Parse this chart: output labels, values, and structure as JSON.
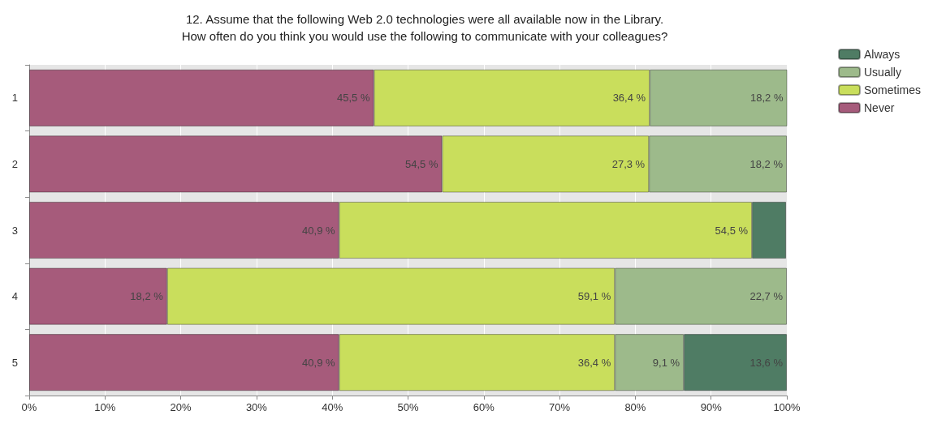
{
  "chart_data": {
    "type": "bar",
    "orientation": "horizontal",
    "stacked": true,
    "title": "12. Assume that the following Web 2.0 technologies were all available now in the Library.\nHow often do you think you would use the following to communicate with your colleagues?",
    "categories": [
      "1",
      "2",
      "3",
      "4",
      "5"
    ],
    "series": [
      {
        "name": "Never",
        "color": "#a65b7b",
        "values": [
          45.5,
          54.5,
          40.9,
          18.2,
          40.9
        ],
        "value_labels": [
          "45,5 %",
          "54,5 %",
          "40,9 %",
          "18,2 %",
          "40,9 %"
        ]
      },
      {
        "name": "Sometimes",
        "color": "#c9de5c",
        "values": [
          36.4,
          27.3,
          54.5,
          59.1,
          36.4
        ],
        "value_labels": [
          "36,4 %",
          "27,3 %",
          "54,5 %",
          "59,1 %",
          "36,4 %"
        ]
      },
      {
        "name": "Usually",
        "color": "#9dba8b",
        "values": [
          18.2,
          18.2,
          null,
          22.7,
          9.1
        ],
        "value_labels": [
          "18,2 %",
          "18,2 %",
          null,
          "22,7 %",
          "9,1 %"
        ]
      },
      {
        "name": "Always",
        "color": "#4f7c64",
        "values": [
          null,
          null,
          4.5,
          null,
          13.6
        ],
        "value_labels": [
          null,
          null,
          null,
          null,
          "13,6 %"
        ]
      }
    ],
    "xlim": [
      0,
      100
    ],
    "xticks": [
      {
        "value": 0,
        "label": "0%"
      },
      {
        "value": 10,
        "label": "10%"
      },
      {
        "value": 20,
        "label": "20%"
      },
      {
        "value": 30,
        "label": "30%"
      },
      {
        "value": 40,
        "label": "40%"
      },
      {
        "value": 50,
        "label": "50%"
      },
      {
        "value": 60,
        "label": "60%"
      },
      {
        "value": 70,
        "label": "70%"
      },
      {
        "value": 80,
        "label": "80%"
      },
      {
        "value": 90,
        "label": "90%"
      },
      {
        "value": 100,
        "label": "100%"
      }
    ],
    "grid": "x",
    "legend": "right"
  }
}
